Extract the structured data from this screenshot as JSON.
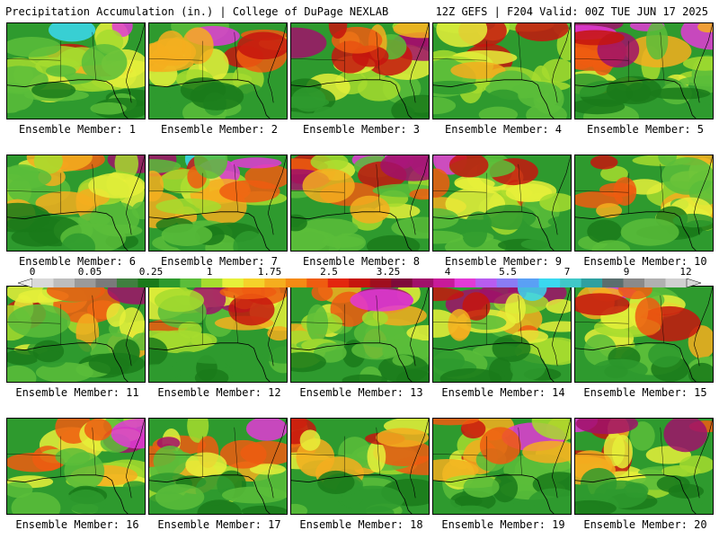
{
  "header": {
    "left": "Precipitation Accumulation (in.) | College of DuPage NEXLAB",
    "right": "12Z GEFS | F204 Valid: 00Z TUE JUN 17 2025"
  },
  "legend": {
    "ticks": [
      "0",
      "0.05",
      "0.25",
      "1",
      "1.75",
      "2.5",
      "3.25",
      "4",
      "5.5",
      "7",
      "9",
      "12"
    ],
    "colors": [
      "#d9d9d9",
      "#bdbdbd",
      "#9a9a9a",
      "#7a7a7a",
      "#3f7f3f",
      "#1a7a1a",
      "#2e9a2e",
      "#5bbd3a",
      "#a6dc2e",
      "#e6f03a",
      "#f5d22a",
      "#f5ae1e",
      "#f58a14",
      "#ef5c10",
      "#e3260e",
      "#c6150e",
      "#a00e1e",
      "#7e0a3a",
      "#a0106a",
      "#c81a9a",
      "#e23ad6",
      "#b85cf0",
      "#8a7cf5",
      "#5aa0f5",
      "#3ad8f0",
      "#40c8c8",
      "#2ea0a0",
      "#5a6e6e",
      "#8a8a8a",
      "#b0b0b0",
      "#d0d0d0"
    ]
  },
  "members": [
    {
      "label": "Ensemble Member: 1"
    },
    {
      "label": "Ensemble Member: 2"
    },
    {
      "label": "Ensemble Member: 3"
    },
    {
      "label": "Ensemble Member: 4"
    },
    {
      "label": "Ensemble Member: 5"
    },
    {
      "label": "Ensemble Member: 6"
    },
    {
      "label": "Ensemble Member: 7"
    },
    {
      "label": "Ensemble Member: 8"
    },
    {
      "label": "Ensemble Member: 9"
    },
    {
      "label": "Ensemble Member: 10"
    },
    {
      "label": "Ensemble Member: 11"
    },
    {
      "label": "Ensemble Member: 12"
    },
    {
      "label": "Ensemble Member: 13"
    },
    {
      "label": "Ensemble Member: 14"
    },
    {
      "label": "Ensemble Member: 15"
    },
    {
      "label": "Ensemble Member: 16"
    },
    {
      "label": "Ensemble Member: 17"
    },
    {
      "label": "Ensemble Member: 18"
    },
    {
      "label": "Ensemble Member: 19"
    },
    {
      "label": "Ensemble Member: 20"
    }
  ]
}
